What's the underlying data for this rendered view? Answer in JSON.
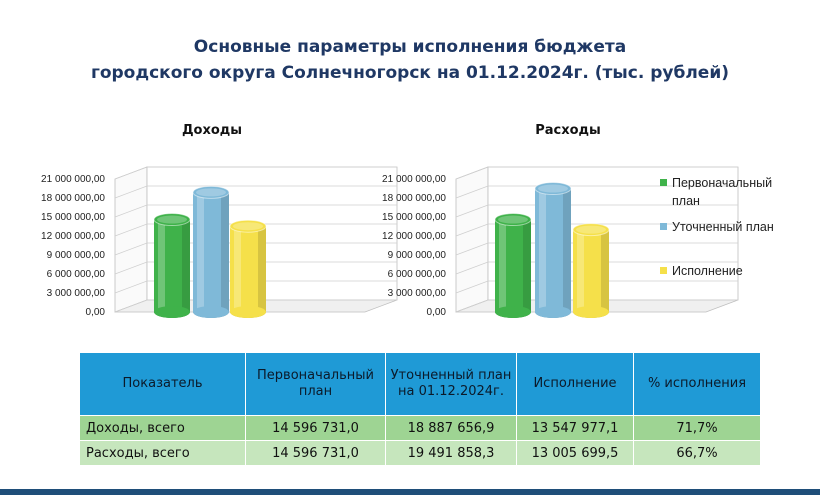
{
  "title": {
    "line1": "Основные параметры исполнения бюджета",
    "line2": "городского округа Солнечногорск на 01.12.2024г. (тыс. рублей)"
  },
  "colors": {
    "plan_initial": "#3fb24a",
    "plan_updated": "#7fb9d8",
    "execution": "#f5e04a",
    "header_bg": "#1f9ad6",
    "row_bg": "#9ed493",
    "row_alt_bg": "#c6e6bd",
    "title_color": "#1f3864"
  },
  "legend": {
    "items": [
      "Первоначальный план",
      "Уточненный план",
      "Исполнение"
    ]
  },
  "chart_data": [
    {
      "type": "bar",
      "style": "3d-cylinder",
      "title": "Доходы",
      "categories": [
        "Первоначальный план",
        "Уточненный план",
        "Исполнение"
      ],
      "values": [
        14596731.0,
        18887656.9,
        13547977.1
      ],
      "ylim": [
        0,
        21000000
      ],
      "yticks": [
        0,
        3000000,
        6000000,
        9000000,
        12000000,
        15000000,
        18000000,
        21000000
      ],
      "ytick_labels": [
        "0,00",
        "3 000 000,00",
        "6 000 000,00",
        "9 000 000,00",
        "12 000 000,00",
        "15 000 000,00",
        "18 000 000,00",
        "21 000 000,00"
      ],
      "grid": true
    },
    {
      "type": "bar",
      "style": "3d-cylinder",
      "title": "Расходы",
      "categories": [
        "Первоначальный план",
        "Уточненный план",
        "Исполнение"
      ],
      "values": [
        14596731.0,
        19491858.3,
        13005699.5
      ],
      "ylim": [
        0,
        21000000
      ],
      "yticks": [
        0,
        3000000,
        6000000,
        9000000,
        12000000,
        15000000,
        18000000,
        21000000
      ],
      "ytick_labels": [
        "0,00",
        "3 000 000,00",
        "6 000 000,00",
        "9 000 000,00",
        "12 000 000,00",
        "15 000 000,00",
        "18 000 000,00",
        "21 000 000,00"
      ],
      "grid": true,
      "legend_position": "right"
    }
  ],
  "table": {
    "headers": [
      "Показатель",
      "Первоначальный план",
      "Уточненный план на 01.12.2024г.",
      "Исполнение",
      "% исполнения"
    ],
    "rows": [
      [
        "Доходы, всего",
        "14 596 731,0",
        "18 887 656,9",
        "13 547 977,1",
        "71,7%"
      ],
      [
        "Расходы, всего",
        "14 596 731,0",
        "19 491 858,3",
        "13 005 699,5",
        "66,7%"
      ]
    ]
  }
}
